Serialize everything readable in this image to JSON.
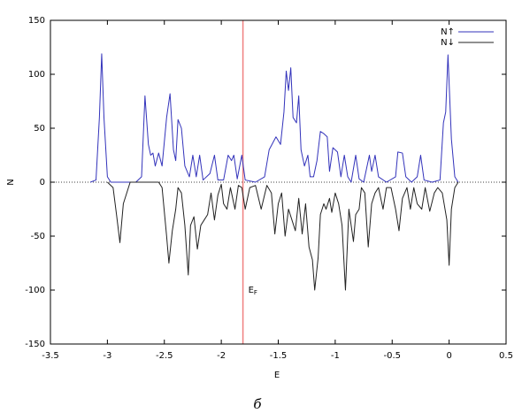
{
  "chart_data": {
    "type": "line",
    "xlabel": "E",
    "ylabel": "N",
    "caption": "б",
    "annotation": {
      "text": "E",
      "subscript": "F"
    },
    "vline": {
      "x": -1.81,
      "color": "#f08080"
    },
    "xlim": [
      -3.5,
      0.5
    ],
    "xticks": [
      -3.5,
      -3,
      -2.5,
      -2,
      -1.5,
      -1,
      -0.5,
      0,
      0.5
    ],
    "ylim": [
      -150,
      150
    ],
    "yticks": [
      -150,
      -100,
      -50,
      0,
      50,
      100,
      150
    ],
    "zero_line": true,
    "legend": "top-right",
    "series": [
      {
        "name": "N↑",
        "color": "#3333bb",
        "x": [
          -3.15,
          -3.1,
          -3.07,
          -3.05,
          -3.03,
          -3.0,
          -2.97,
          -2.75,
          -2.7,
          -2.67,
          -2.64,
          -2.62,
          -2.6,
          -2.58,
          -2.55,
          -2.52,
          -2.48,
          -2.45,
          -2.42,
          -2.4,
          -2.38,
          -2.35,
          -2.32,
          -2.28,
          -2.25,
          -2.22,
          -2.19,
          -2.16,
          -2.1,
          -2.06,
          -2.03,
          -1.98,
          -1.94,
          -1.91,
          -1.89,
          -1.86,
          -1.82,
          -1.79,
          -1.7,
          -1.62,
          -1.58,
          -1.52,
          -1.48,
          -1.45,
          -1.43,
          -1.41,
          -1.39,
          -1.37,
          -1.34,
          -1.32,
          -1.3,
          -1.27,
          -1.24,
          -1.22,
          -1.19,
          -1.16,
          -1.13,
          -1.1,
          -1.07,
          -1.05,
          -1.02,
          -0.98,
          -0.95,
          -0.92,
          -0.89,
          -0.86,
          -0.82,
          -0.79,
          -0.75,
          -0.7,
          -0.68,
          -0.65,
          -0.62,
          -0.55,
          -0.47,
          -0.45,
          -0.41,
          -0.38,
          -0.33,
          -0.28,
          -0.25,
          -0.22,
          -0.15,
          -0.08,
          -0.05,
          -0.03,
          -0.01,
          0.02,
          0.05,
          0.08
        ],
        "values": [
          0,
          2,
          60,
          119,
          60,
          5,
          0,
          0,
          5,
          80,
          35,
          25,
          27,
          15,
          27,
          15,
          60,
          82,
          30,
          20,
          58,
          50,
          15,
          5,
          25,
          5,
          25,
          2,
          8,
          25,
          2,
          2,
          25,
          20,
          25,
          3,
          25,
          2,
          0,
          5,
          30,
          42,
          35,
          65,
          103,
          85,
          106,
          60,
          55,
          80,
          30,
          15,
          25,
          5,
          5,
          20,
          47,
          45,
          42,
          10,
          32,
          28,
          5,
          25,
          5,
          0,
          25,
          3,
          0,
          25,
          10,
          25,
          5,
          0,
          5,
          28,
          27,
          5,
          0,
          5,
          25,
          2,
          0,
          2,
          55,
          65,
          118,
          40,
          5,
          0
        ]
      },
      {
        "name": "N↓",
        "color": "#222222",
        "x": [
          -3.0,
          -2.95,
          -2.92,
          -2.89,
          -2.86,
          -2.8,
          -2.55,
          -2.52,
          -2.48,
          -2.46,
          -2.43,
          -2.4,
          -2.38,
          -2.35,
          -2.32,
          -2.29,
          -2.27,
          -2.24,
          -2.21,
          -2.18,
          -2.15,
          -2.12,
          -2.09,
          -2.06,
          -2.03,
          -2.0,
          -1.98,
          -1.95,
          -1.92,
          -1.88,
          -1.85,
          -1.82,
          -1.79,
          -1.75,
          -1.7,
          -1.65,
          -1.6,
          -1.56,
          -1.53,
          -1.5,
          -1.47,
          -1.44,
          -1.41,
          -1.38,
          -1.35,
          -1.32,
          -1.29,
          -1.26,
          -1.23,
          -1.2,
          -1.18,
          -1.15,
          -1.13,
          -1.1,
          -1.08,
          -1.05,
          -1.03,
          -1.0,
          -0.97,
          -0.94,
          -0.91,
          -0.88,
          -0.84,
          -0.82,
          -0.79,
          -0.77,
          -0.74,
          -0.71,
          -0.68,
          -0.65,
          -0.62,
          -0.58,
          -0.55,
          -0.51,
          -0.47,
          -0.44,
          -0.41,
          -0.37,
          -0.34,
          -0.31,
          -0.28,
          -0.24,
          -0.21,
          -0.17,
          -0.13,
          -0.1,
          -0.06,
          -0.02,
          0.0,
          0.02,
          0.05,
          0.08
        ],
        "values": [
          0,
          -5,
          -30,
          -56,
          -20,
          0,
          0,
          -5,
          -50,
          -75,
          -45,
          -25,
          -5,
          -10,
          -40,
          -86,
          -40,
          -32,
          -62,
          -40,
          -35,
          -30,
          -10,
          -35,
          -12,
          -2,
          -20,
          -25,
          -5,
          -25,
          -3,
          -5,
          -25,
          -5,
          -3,
          -25,
          -3,
          -10,
          -48,
          -20,
          -10,
          -50,
          -25,
          -35,
          -45,
          -15,
          -48,
          -20,
          -60,
          -72,
          -100,
          -70,
          -30,
          -20,
          -25,
          -15,
          -28,
          -10,
          -20,
          -40,
          -100,
          -25,
          -55,
          -30,
          -25,
          -5,
          -10,
          -60,
          -20,
          -10,
          -5,
          -25,
          -5,
          -5,
          -25,
          -45,
          -15,
          -5,
          -25,
          -5,
          -20,
          -25,
          -5,
          -27,
          -10,
          -5,
          -10,
          -35,
          -77,
          -25,
          -5,
          0
        ]
      }
    ]
  }
}
